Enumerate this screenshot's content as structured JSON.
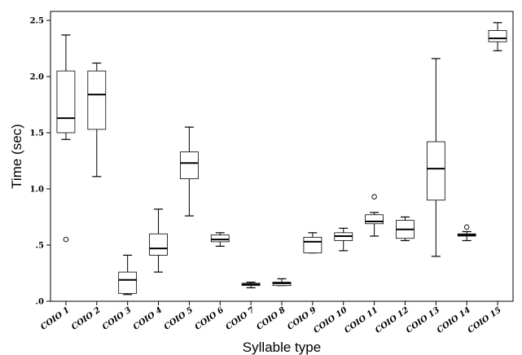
{
  "chart_data": {
    "type": "boxplot",
    "xlabel": "Syllable type",
    "ylabel": "Time (sec)",
    "ylim": [
      0,
      2.58
    ],
    "yticks": [
      {
        "value": 0,
        "label": ".0"
      },
      {
        "value": 0.5,
        "label": ".5"
      },
      {
        "value": 1.0,
        "label": "1.0"
      },
      {
        "value": 1.5,
        "label": "1.5"
      },
      {
        "value": 2.0,
        "label": "2.0"
      },
      {
        "value": 2.5,
        "label": "2.5"
      }
    ],
    "grid": false,
    "categories": [
      "COIO 1",
      "COIO 2",
      "COIO 3",
      "COIO 4",
      "COIO 5",
      "COIO 6",
      "COIO 7",
      "COIO 8",
      "COIO 9",
      "COIO 10",
      "COIO 11",
      "COIO 12",
      "COIO 13",
      "COIO 14",
      "COIO 15"
    ],
    "boxes": [
      {
        "whisker_low": 1.44,
        "q1": 1.5,
        "median": 1.63,
        "q3": 2.05,
        "whisker_high": 2.37,
        "outliers": [
          0.55
        ]
      },
      {
        "whisker_low": 1.11,
        "q1": 1.53,
        "median": 1.84,
        "q3": 2.05,
        "whisker_high": 2.12,
        "outliers": []
      },
      {
        "whisker_low": 0.06,
        "q1": 0.07,
        "median": 0.19,
        "q3": 0.26,
        "whisker_high": 0.41,
        "outliers": []
      },
      {
        "whisker_low": 0.26,
        "q1": 0.41,
        "median": 0.47,
        "q3": 0.6,
        "whisker_high": 0.82,
        "outliers": []
      },
      {
        "whisker_low": 0.76,
        "q1": 1.09,
        "median": 1.23,
        "q3": 1.33,
        "whisker_high": 1.55,
        "outliers": []
      },
      {
        "whisker_low": 0.49,
        "q1": 0.53,
        "median": 0.55,
        "q3": 0.59,
        "whisker_high": 0.61,
        "outliers": []
      },
      {
        "whisker_low": 0.12,
        "q1": 0.14,
        "median": 0.15,
        "q3": 0.16,
        "whisker_high": 0.17,
        "outliers": []
      },
      {
        "whisker_low": 0.14,
        "q1": 0.14,
        "median": 0.16,
        "q3": 0.17,
        "whisker_high": 0.2,
        "outliers": []
      },
      {
        "whisker_low": 0.43,
        "q1": 0.43,
        "median": 0.53,
        "q3": 0.57,
        "whisker_high": 0.61,
        "outliers": []
      },
      {
        "whisker_low": 0.45,
        "q1": 0.54,
        "median": 0.58,
        "q3": 0.61,
        "whisker_high": 0.65,
        "outliers": []
      },
      {
        "whisker_low": 0.58,
        "q1": 0.69,
        "median": 0.71,
        "q3": 0.77,
        "whisker_high": 0.79,
        "outliers": [
          0.93
        ]
      },
      {
        "whisker_low": 0.54,
        "q1": 0.56,
        "median": 0.64,
        "q3": 0.72,
        "whisker_high": 0.75,
        "outliers": []
      },
      {
        "whisker_low": 0.4,
        "q1": 0.9,
        "median": 1.18,
        "q3": 1.42,
        "whisker_high": 2.16,
        "outliers": []
      },
      {
        "whisker_low": 0.54,
        "q1": 0.58,
        "median": 0.59,
        "q3": 0.6,
        "whisker_high": 0.62,
        "outliers": [
          0.66
        ]
      },
      {
        "whisker_low": 2.23,
        "q1": 2.31,
        "median": 2.34,
        "q3": 2.41,
        "whisker_high": 2.48,
        "outliers": []
      }
    ]
  }
}
